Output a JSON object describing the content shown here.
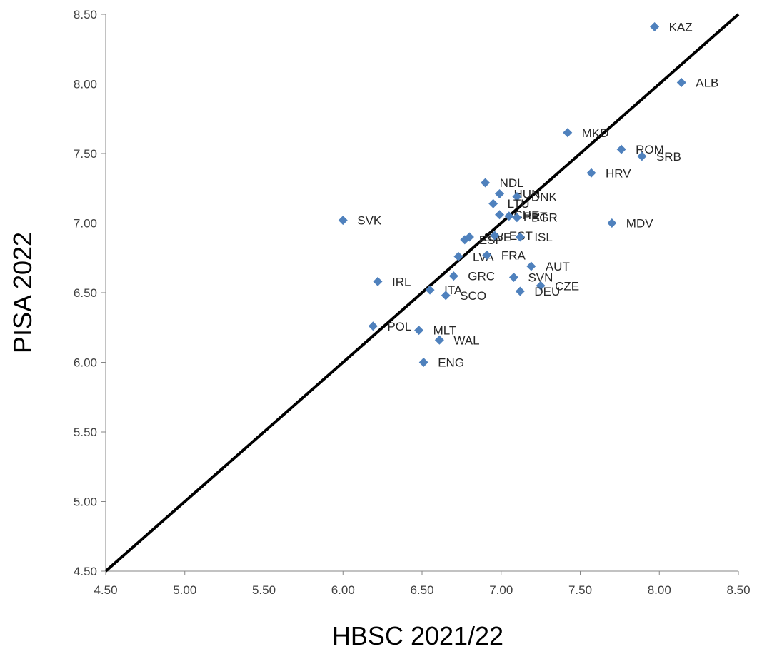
{
  "chart_data": {
    "type": "scatter",
    "title": "",
    "xlabel": "HBSC 2021/22",
    "ylabel": "PISA 2022",
    "xlim": [
      4.5,
      8.5
    ],
    "ylim": [
      4.5,
      8.5
    ],
    "x_ticks": [
      "4.50",
      "5.00",
      "5.50",
      "6.00",
      "6.50",
      "7.00",
      "7.50",
      "8.00",
      "8.50"
    ],
    "y_ticks": [
      "4.50",
      "5.00",
      "5.50",
      "6.00",
      "6.50",
      "7.00",
      "7.50",
      "8.00",
      "8.50"
    ],
    "grid": false,
    "legend": "none",
    "marker_color": "#4f81bd",
    "reference_line": {
      "from": [
        4.5,
        4.5
      ],
      "to": [
        8.5,
        8.5
      ],
      "color": "#000000"
    },
    "points": [
      {
        "label": "KAZ",
        "x": 7.97,
        "y": 8.41
      },
      {
        "label": "ALB",
        "x": 8.14,
        "y": 8.01
      },
      {
        "label": "MKD",
        "x": 7.42,
        "y": 7.65
      },
      {
        "label": "ROM",
        "x": 7.76,
        "y": 7.53
      },
      {
        "label": "SRB",
        "x": 7.89,
        "y": 7.48
      },
      {
        "label": "HRV",
        "x": 7.57,
        "y": 7.36
      },
      {
        "label": "NDL",
        "x": 6.9,
        "y": 7.29
      },
      {
        "label": "HUN",
        "x": 6.99,
        "y": 7.21
      },
      {
        "label": "DNK",
        "x": 7.1,
        "y": 7.19
      },
      {
        "label": "LTU",
        "x": 6.95,
        "y": 7.14
      },
      {
        "label": "CHE",
        "x": 6.99,
        "y": 7.06
      },
      {
        "label": "PRT",
        "x": 7.05,
        "y": 7.05
      },
      {
        "label": "BGR",
        "x": 7.1,
        "y": 7.04
      },
      {
        "label": "SVK",
        "x": 6.0,
        "y": 7.02
      },
      {
        "label": "MDV",
        "x": 7.7,
        "y": 7.0
      },
      {
        "label": "ESP",
        "x": 6.77,
        "y": 6.88
      },
      {
        "label": "SWE",
        "x": 6.8,
        "y": 6.9
      },
      {
        "label": "EST",
        "x": 6.96,
        "y": 6.91
      },
      {
        "label": "ISL",
        "x": 7.12,
        "y": 6.9
      },
      {
        "label": "LVA",
        "x": 6.73,
        "y": 6.76
      },
      {
        "label": "FRA",
        "x": 6.91,
        "y": 6.77
      },
      {
        "label": "AUT",
        "x": 7.19,
        "y": 6.69
      },
      {
        "label": "GRC",
        "x": 6.7,
        "y": 6.62
      },
      {
        "label": "SVN",
        "x": 7.08,
        "y": 6.61
      },
      {
        "label": "IRL",
        "x": 6.22,
        "y": 6.58
      },
      {
        "label": "CZE",
        "x": 7.25,
        "y": 6.55
      },
      {
        "label": "ITA",
        "x": 6.55,
        "y": 6.52
      },
      {
        "label": "DEU",
        "x": 7.12,
        "y": 6.51
      },
      {
        "label": "SCO",
        "x": 6.65,
        "y": 6.48
      },
      {
        "label": "POL",
        "x": 6.19,
        "y": 6.26
      },
      {
        "label": "MLT",
        "x": 6.48,
        "y": 6.23
      },
      {
        "label": "WAL",
        "x": 6.61,
        "y": 6.16
      },
      {
        "label": "ENG",
        "x": 6.51,
        "y": 6.0
      }
    ]
  }
}
